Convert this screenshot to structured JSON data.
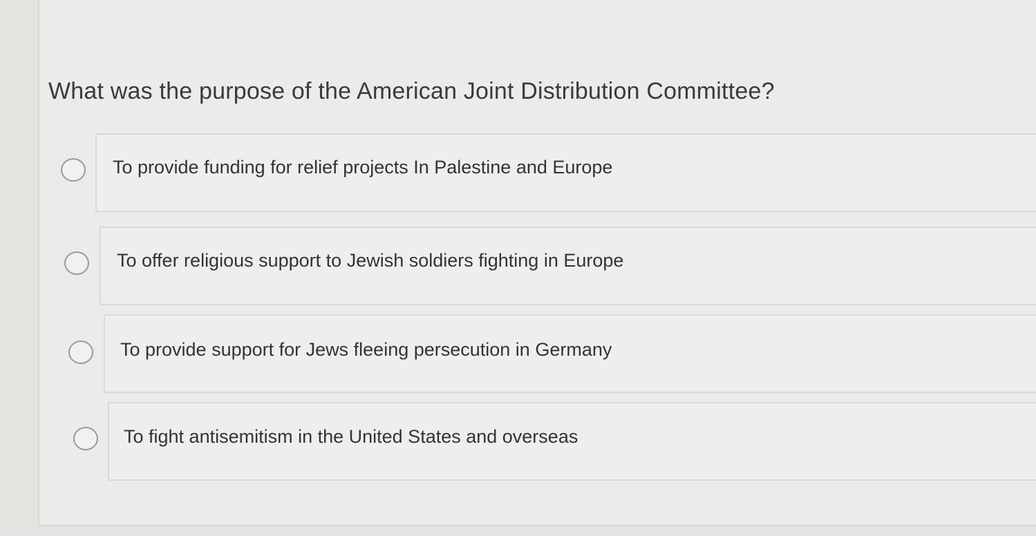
{
  "question": "What was the purpose of the American Joint Distribution Committee?",
  "options": [
    {
      "label": "To provide funding for relief projects In Palestine and Europe",
      "selected": false
    },
    {
      "label": "To offer religious support to Jewish soldiers fighting in Europe",
      "selected": false
    },
    {
      "label": "To provide support for Jews fleeing persecution in Germany",
      "selected": false
    },
    {
      "label": "To fight antisemitism in the United States and overseas",
      "selected": false
    }
  ]
}
